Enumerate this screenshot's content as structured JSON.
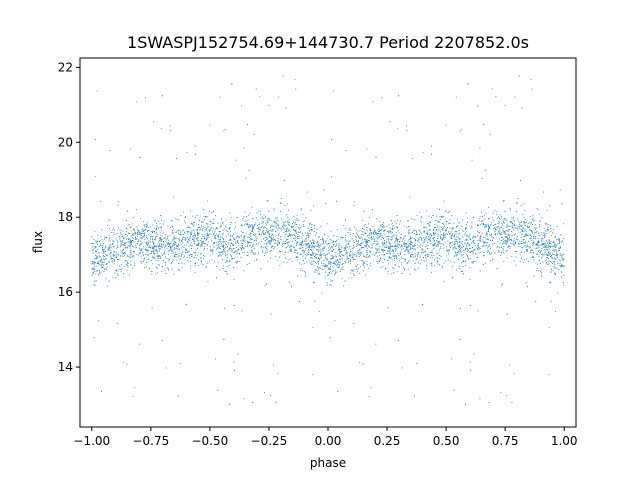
{
  "chart_data": {
    "type": "scatter",
    "title": "1SWASPJ152754.69+144730.7 Period 2207852.0s",
    "xlabel": "phase",
    "ylabel": "flux",
    "xlim": [
      -1.05,
      1.05
    ],
    "ylim": [
      12.4,
      22.25
    ],
    "xticks": [
      -1.0,
      -0.75,
      -0.5,
      -0.25,
      0.0,
      0.25,
      0.5,
      0.75,
      1.0
    ],
    "xtick_labels": [
      "−1.00",
      "−0.75",
      "−0.50",
      "−0.25",
      "0.00",
      "0.25",
      "0.50",
      "0.75",
      "1.00"
    ],
    "yticks": [
      14,
      16,
      18,
      20,
      22
    ],
    "ytick_labels": [
      "14",
      "16",
      "18",
      "20",
      "22"
    ],
    "grid": false,
    "point_color": "#1f77b4",
    "series": [
      {
        "phase_range": [
          -1.0,
          1.0
        ],
        "symmetric_about_phase": 0.0,
        "period_in_phase": 1.0,
        "num_points": 5000,
        "profile_phase": [
          0.0,
          0.1,
          0.2,
          0.3,
          0.4,
          0.5,
          0.6,
          0.7,
          0.8,
          0.9,
          1.0
        ],
        "profile_flux": [
          16.9,
          17.1,
          17.4,
          17.2,
          17.3,
          17.5,
          17.2,
          17.6,
          17.6,
          17.3,
          16.9
        ],
        "scatter_flux": 0.6,
        "outlier_flux_range": [
          12.9,
          21.8
        ]
      }
    ]
  }
}
